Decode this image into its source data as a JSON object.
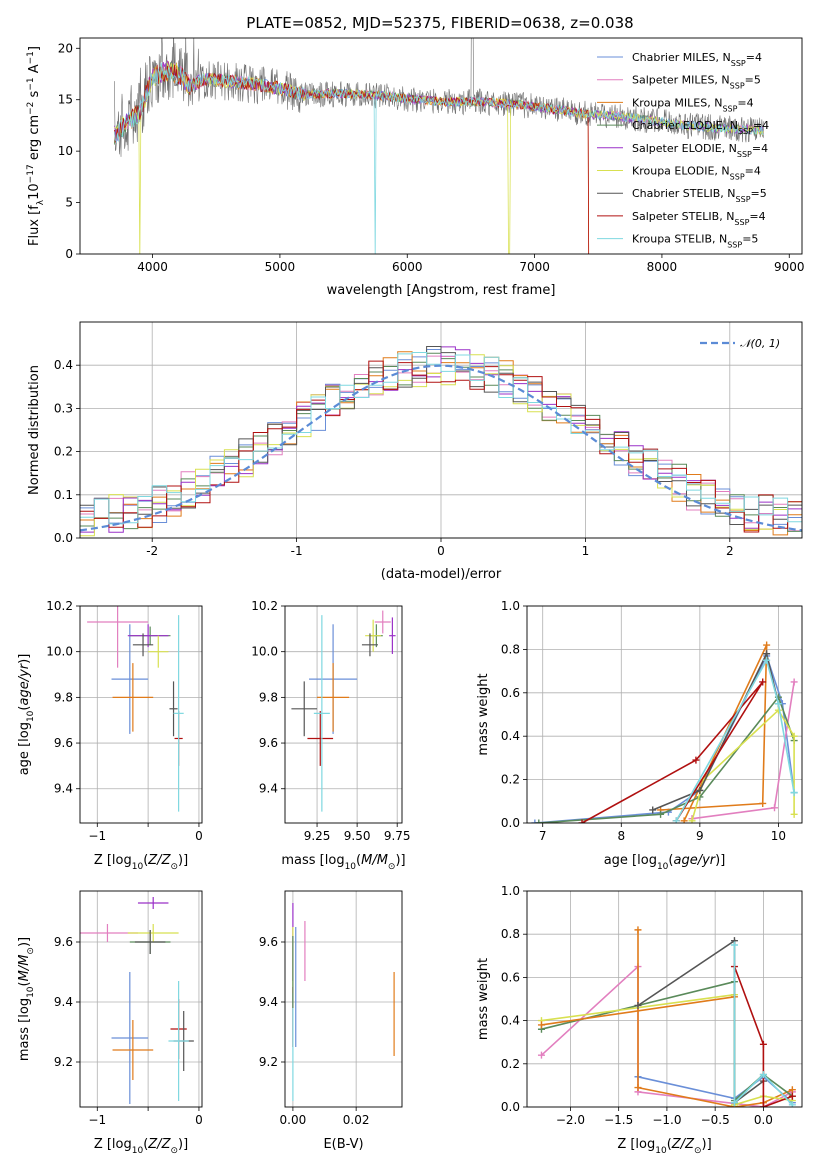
{
  "figure": {
    "title": "PLATE=0852, MJD=52375, FIBERID=0638, z=0.038",
    "colors": [
      "#6a8fd8",
      "#e27fbf",
      "#e07b1a",
      "#5a8a5a",
      "#9a30c8",
      "#d8e050",
      "#555555",
      "#b01010",
      "#7fd8e0"
    ]
  },
  "chart_data": [
    {
      "id": "spectrum",
      "type": "line",
      "xlabel": "wavelength [Angstrom, rest frame]",
      "ylabel": "Flux [fλ10⁻¹⁷ erg cm⁻² s⁻¹ A⁻¹]",
      "xlim": [
        3430,
        9100
      ],
      "ylim": [
        0,
        21
      ],
      "xticks": [
        4000,
        5000,
        6000,
        7000,
        8000,
        9000
      ],
      "yticks": [
        0,
        5,
        10,
        15,
        20
      ],
      "grid": false,
      "legend_position": "top-right",
      "series": [
        {
          "name": "Chabrier MILES, N",
          "sub": "SSP",
          "suffix": "=4"
        },
        {
          "name": "Salpeter MILES, N",
          "sub": "SSP",
          "suffix": "=5"
        },
        {
          "name": "Kroupa MILES, N",
          "sub": "SSP",
          "suffix": "=4"
        },
        {
          "name": "Chabrier ELODIE, N",
          "sub": "SSP",
          "suffix": "=4"
        },
        {
          "name": "Salpeter ELODIE, N",
          "sub": "SSP",
          "suffix": "=4"
        },
        {
          "name": "Kroupa ELODIE, N",
          "sub": "SSP",
          "suffix": "=4"
        },
        {
          "name": "Chabrier STELIB, N",
          "sub": "SSP",
          "suffix": "=5"
        },
        {
          "name": "Salpeter STELIB, N",
          "sub": "SSP",
          "suffix": "=4"
        },
        {
          "name": "Kroupa STELIB, N",
          "sub": "SSP",
          "suffix": "=5"
        }
      ],
      "continuum": [
        [
          3700,
          11.5
        ],
        [
          3800,
          12.8
        ],
        [
          3900,
          13.8
        ],
        [
          4000,
          17.2
        ],
        [
          4100,
          17.8
        ],
        [
          4200,
          17.6
        ],
        [
          4300,
          16.3
        ],
        [
          4400,
          17.0
        ],
        [
          4600,
          16.8
        ],
        [
          4800,
          16.5
        ],
        [
          5000,
          16.1
        ],
        [
          5200,
          15.5
        ],
        [
          5500,
          15.6
        ],
        [
          5800,
          15.4
        ],
        [
          6000,
          15.1
        ],
        [
          6300,
          14.8
        ],
        [
          6600,
          14.8
        ],
        [
          6900,
          14.5
        ],
        [
          7200,
          14.0
        ],
        [
          7400,
          13.6
        ],
        [
          7600,
          13.5
        ],
        [
          7900,
          13.0
        ],
        [
          8200,
          12.5
        ],
        [
          8500,
          12.2
        ],
        [
          8800,
          12.0
        ]
      ],
      "stelib_cutoff": 7420,
      "masked_pixels": [
        3900,
        5750,
        6500,
        6800
      ]
    },
    {
      "id": "residuals",
      "type": "line",
      "xlabel": "(data-model)/error",
      "ylabel": "Normed distribution",
      "xlim": [
        -2.5,
        2.5
      ],
      "ylim": [
        0,
        0.5
      ],
      "xticks": [
        -2,
        -1,
        0,
        1,
        2
      ],
      "yticks": [
        0.0,
        0.1,
        0.2,
        0.3,
        0.4
      ],
      "grid": true,
      "legend_position": "top-right",
      "gaussian_label": "𝒩(0, 1)",
      "bin_width": 0.1
    },
    {
      "id": "age-vs-metallicity",
      "type": "scatter",
      "xlabel": "Z [log10(Z/Z⊙)]",
      "ylabel": "age  [log10(age/yr)]",
      "xlim": [
        -1.17,
        0.03
      ],
      "ylim": [
        9.25,
        10.2
      ],
      "xticks": [
        -1,
        -0.5,
        0
      ],
      "xticklabels": [
        "−1",
        "",
        "0"
      ],
      "yticks": [
        9.4,
        9.6,
        9.8,
        10.0,
        10.2
      ],
      "grid": true,
      "points": [
        {
          "x": -0.68,
          "xerr": 0.18,
          "y": 9.88,
          "yerr": 0.24,
          "c": 0
        },
        {
          "x": -0.8,
          "xerr": 0.3,
          "y": 10.13,
          "yerr": 0.2,
          "c": 1
        },
        {
          "x": -0.65,
          "xerr": 0.2,
          "y": 9.8,
          "yerr": 0.15,
          "c": 2
        },
        {
          "x": -0.48,
          "xerr": 0.2,
          "y": 10.07,
          "yerr": 0.04,
          "c": 3
        },
        {
          "x": -0.5,
          "xerr": 0.2,
          "y": 10.07,
          "yerr": 0.05,
          "c": 4
        },
        {
          "x": -0.4,
          "xerr": 0.1,
          "y": 10.0,
          "yerr": 0.07,
          "c": 5
        },
        {
          "x": -0.55,
          "xerr": 0.1,
          "y": 10.03,
          "yerr": 0.05,
          "c": 6
        },
        {
          "x": -0.2,
          "xerr": 0.04,
          "y": 9.62,
          "yerr": 0.12,
          "c": 7
        },
        {
          "x": -0.25,
          "xerr": 0.04,
          "y": 9.75,
          "yerr": 0.12,
          "c": 6
        },
        {
          "x": -0.2,
          "xerr": 0.05,
          "y": 9.73,
          "yerr": 0.43,
          "c": 8
        }
      ]
    },
    {
      "id": "age-vs-mass",
      "type": "scatter",
      "xlabel": "mass [log10(M/M⊙)]",
      "ylabel": "",
      "xlim": [
        9.05,
        9.78
      ],
      "ylim": [
        9.25,
        10.2
      ],
      "xticks": [
        9.25,
        9.5,
        9.75
      ],
      "xticklabels": [
        "9.25",
        "9.50",
        "9.75"
      ],
      "yticks": [
        9.4,
        9.6,
        9.8,
        10.0,
        10.2
      ],
      "grid": true,
      "points": [
        {
          "x": 9.35,
          "xerr": 0.15,
          "y": 9.88,
          "yerr": 0.24,
          "c": 0
        },
        {
          "x": 9.66,
          "xerr": 0.05,
          "y": 10.13,
          "yerr": 0.05,
          "c": 1
        },
        {
          "x": 9.35,
          "xerr": 0.1,
          "y": 9.8,
          "yerr": 0.15,
          "c": 2
        },
        {
          "x": 9.62,
          "xerr": 0.04,
          "y": 10.07,
          "yerr": 0.05,
          "c": 3
        },
        {
          "x": 9.72,
          "xerr": 0.02,
          "y": 10.07,
          "yerr": 0.08,
          "c": 4
        },
        {
          "x": 9.6,
          "xerr": 0.05,
          "y": 10.07,
          "yerr": 0.07,
          "c": 5
        },
        {
          "x": 9.58,
          "xerr": 0.05,
          "y": 10.03,
          "yerr": 0.05,
          "c": 6
        },
        {
          "x": 9.27,
          "xerr": 0.08,
          "y": 9.62,
          "yerr": 0.12,
          "c": 7
        },
        {
          "x": 9.17,
          "xerr": 0.08,
          "y": 9.75,
          "yerr": 0.12,
          "c": 6
        },
        {
          "x": 9.28,
          "xerr": 0.05,
          "y": 9.73,
          "yerr": 0.43,
          "c": 8
        }
      ]
    },
    {
      "id": "weight-vs-age",
      "type": "line",
      "xlabel": "age  [log10(age/yr)]",
      "ylabel": "mass weight",
      "xlim": [
        6.8,
        10.3
      ],
      "ylim": [
        0,
        1
      ],
      "xticks": [
        7,
        8,
        9,
        10
      ],
      "yticks": [
        0.0,
        0.2,
        0.4,
        0.6,
        0.8,
        1.0
      ],
      "grid": true,
      "series": [
        {
          "c": 0,
          "pts": [
            [
              6.9,
              0
            ],
            [
              8.6,
              0.05
            ],
            [
              9.0,
              0.15
            ],
            [
              9.85,
              0.77
            ],
            [
              10.05,
              0.55
            ],
            [
              10.2,
              0.14
            ]
          ]
        },
        {
          "c": 1,
          "pts": [
            [
              8.9,
              0.02
            ],
            [
              9.95,
              0.07
            ],
            [
              10.2,
              0.65
            ]
          ]
        },
        {
          "c": 2,
          "pts": [
            [
              8.5,
              0.06
            ],
            [
              9.8,
              0.09
            ],
            [
              9.85,
              0.82
            ],
            [
              8.8,
              0.01
            ]
          ]
        },
        {
          "c": 3,
          "pts": [
            [
              6.95,
              0
            ],
            [
              8.5,
              0.04
            ],
            [
              9.0,
              0.12
            ],
            [
              10.0,
              0.58
            ],
            [
              10.2,
              0.38
            ]
          ]
        },
        {
          "c": 5,
          "pts": [
            [
              8.9,
              0.01
            ],
            [
              9.05,
              0.2
            ],
            [
              10.0,
              0.52
            ],
            [
              10.2,
              0.4
            ],
            [
              10.2,
              0.04
            ]
          ]
        },
        {
          "c": 6,
          "pts": [
            [
              8.4,
              0.06
            ],
            [
              9.0,
              0.15
            ],
            [
              9.85,
              0.78
            ],
            [
              10.0,
              0.55
            ]
          ]
        },
        {
          "c": 7,
          "pts": [
            [
              7.5,
              0
            ],
            [
              8.95,
              0.29
            ],
            [
              9.8,
              0.65
            ],
            [
              8.7,
              0.01
            ]
          ]
        },
        {
          "c": 8,
          "pts": [
            [
              8.7,
              0.01
            ],
            [
              9.85,
              0.75
            ],
            [
              10.0,
              0.55
            ],
            [
              10.2,
              0.14
            ]
          ]
        }
      ]
    },
    {
      "id": "mass-vs-metallicity",
      "type": "scatter",
      "xlabel": "Z [log10(Z/Z⊙)]",
      "ylabel": "mass [log10(M/M⊙)]",
      "xlim": [
        -1.17,
        0.03
      ],
      "ylim": [
        9.05,
        9.77
      ],
      "xticks": [
        -1,
        -0.5,
        0
      ],
      "xticklabels": [
        "−1",
        "",
        "0"
      ],
      "yticks": [
        9.2,
        9.4,
        9.6
      ],
      "grid": true,
      "points": [
        {
          "x": -0.68,
          "xerr": 0.18,
          "y": 9.28,
          "yerr": 0.22,
          "c": 0
        },
        {
          "x": -0.9,
          "xerr": 0.3,
          "y": 9.63,
          "yerr": 0.03,
          "c": 1
        },
        {
          "x": -0.65,
          "xerr": 0.2,
          "y": 9.24,
          "yerr": 0.1,
          "c": 2
        },
        {
          "x": -0.48,
          "xerr": 0.2,
          "y": 9.6,
          "yerr": 0.04,
          "c": 3
        },
        {
          "x": -0.45,
          "xerr": 0.15,
          "y": 9.73,
          "yerr": 0.02,
          "c": 4
        },
        {
          "x": -0.45,
          "xerr": 0.25,
          "y": 9.63,
          "yerr": 0.03,
          "c": 5
        },
        {
          "x": -0.48,
          "xerr": 0.15,
          "y": 9.6,
          "yerr": 0.04,
          "c": 6
        },
        {
          "x": -0.2,
          "xerr": 0.08,
          "y": 9.31,
          "yerr": 0.1,
          "c": 7
        },
        {
          "x": -0.15,
          "xerr": 0.1,
          "y": 9.27,
          "yerr": 0.1,
          "c": 6
        },
        {
          "x": -0.2,
          "xerr": 0.1,
          "y": 9.27,
          "yerr": 0.2,
          "c": 8
        }
      ]
    },
    {
      "id": "mass-vs-reddening",
      "type": "scatter",
      "xlabel": "E(B-V)",
      "ylabel": "",
      "xlim": [
        -0.0025,
        0.0345
      ],
      "ylim": [
        9.05,
        9.77
      ],
      "xticks": [
        0.0,
        0.02
      ],
      "xticklabels": [
        "0.00",
        "0.02"
      ],
      "yticks": [
        9.2,
        9.4,
        9.6
      ],
      "grid": true,
      "points": [
        {
          "x": 0.0,
          "xerr": 0,
          "y": 9.6,
          "yerr": 0.13,
          "c": 4
        },
        {
          "x": 0.0,
          "xerr": 0,
          "y": 9.55,
          "yerr": 0.1,
          "c": 5
        },
        {
          "x": 0.0,
          "xerr": 0,
          "y": 9.35,
          "yerr": 0.1,
          "c": 7
        },
        {
          "x": 0.0,
          "xerr": 0,
          "y": 9.25,
          "yerr": 0.18,
          "c": 8
        },
        {
          "x": 0.0,
          "xerr": 0,
          "y": 9.5,
          "yerr": 0.12,
          "c": 3
        },
        {
          "x": 0.0009,
          "xerr": 0,
          "y": 9.45,
          "yerr": 0.2,
          "c": 0
        },
        {
          "x": 0.0038,
          "xerr": 0,
          "y": 9.57,
          "yerr": 0.1,
          "c": 1
        },
        {
          "x": 0.032,
          "xerr": 0,
          "y": 9.36,
          "yerr": 0.14,
          "c": 2
        }
      ]
    },
    {
      "id": "weight-vs-metallicity",
      "type": "line",
      "xlabel": "Z [log10(Z/Z⊙)]",
      "ylabel": "mass weight",
      "xlim": [
        -2.45,
        0.4
      ],
      "ylim": [
        0,
        1
      ],
      "xticks": [
        -2.0,
        -1.5,
        -1.0,
        -0.5,
        0.0
      ],
      "xticklabels": [
        "−2.0",
        "−1.5",
        "−1.0",
        "−0.5",
        "0.0"
      ],
      "yticks": [
        0.0,
        0.2,
        0.4,
        0.6,
        0.8,
        1.0
      ],
      "grid": true,
      "series": [
        {
          "c": 1,
          "pts": [
            [
              -2.3,
              0.24
            ],
            [
              -1.3,
              0.65
            ],
            [
              -1.3,
              0.07
            ],
            [
              0.0,
              0.0
            ],
            [
              0.3,
              0.07
            ]
          ]
        },
        {
          "c": 0,
          "pts": [
            [
              -1.3,
              0.14
            ],
            [
              -0.3,
              0.04
            ],
            [
              0.0,
              0.14
            ],
            [
              0.3,
              0.02
            ]
          ]
        },
        {
          "c": 2,
          "pts": [
            [
              -1.3,
              0.82
            ],
            [
              -1.3,
              0.09
            ],
            [
              -0.3,
              0.0
            ],
            [
              0.0,
              0.02
            ],
            [
              0.3,
              0.08
            ]
          ]
        },
        {
          "c": 3,
          "pts": [
            [
              -2.3,
              0.36
            ],
            [
              -0.3,
              0.58
            ],
            [
              -0.3,
              0.03
            ],
            [
              0.0,
              0.15
            ],
            [
              0.3,
              0.05
            ]
          ]
        },
        {
          "c": 5,
          "pts": [
            [
              -2.3,
              0.4
            ],
            [
              -0.3,
              0.52
            ],
            [
              -0.3,
              0.01
            ],
            [
              0.0,
              0.05
            ],
            [
              0.3,
              0.03
            ]
          ]
        },
        {
          "c": 2,
          "pts": [
            [
              -2.3,
              0.38
            ],
            [
              -0.3,
              0.51
            ]
          ]
        },
        {
          "c": 6,
          "pts": [
            [
              -1.3,
              0.47
            ],
            [
              -0.3,
              0.77
            ],
            [
              -0.3,
              0.02
            ],
            [
              0.0,
              0.12
            ]
          ]
        },
        {
          "c": 7,
          "pts": [
            [
              -0.3,
              0.65
            ],
            [
              0.0,
              0.29
            ],
            [
              0.0,
              0.0
            ],
            [
              0.3,
              0.05
            ]
          ]
        },
        {
          "c": 8,
          "pts": [
            [
              -0.3,
              0.75
            ],
            [
              -0.3,
              0.02
            ],
            [
              0.0,
              0.15
            ],
            [
              0.3,
              0.01
            ]
          ]
        }
      ]
    }
  ]
}
